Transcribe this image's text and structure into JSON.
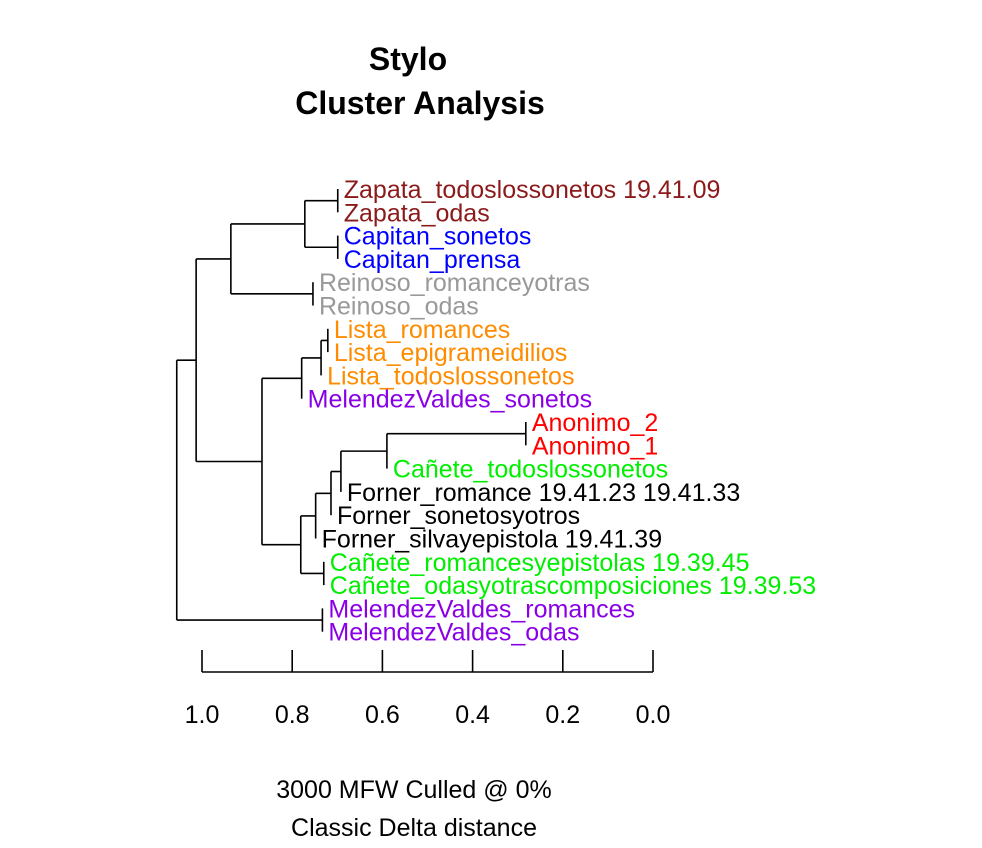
{
  "chart_data": {
    "type": "dendrogram",
    "title": "Stylo",
    "subtitle": "Cluster Analysis",
    "xlabel_line1": "3000 MFW  Culled @ 0%",
    "xlabel_line2": "Classic Delta distance",
    "xlim": [
      1.0,
      0.0
    ],
    "ticks": [
      "1.0",
      "0.8",
      "0.6",
      "0.4",
      "0.2",
      "0.0"
    ],
    "tick_values": [
      1.0,
      0.8,
      0.6,
      0.4,
      0.2,
      0.0
    ],
    "leaves": [
      {
        "label": "Zapata_todoslossonetos 19.41.09",
        "color": "#8B1A1A"
      },
      {
        "label": "Zapata_odas",
        "color": "#8B1A1A"
      },
      {
        "label": "Capitan_sonetos",
        "color": "#0000FF"
      },
      {
        "label": "Capitan_prensa",
        "color": "#0000FF"
      },
      {
        "label": "Reinoso_romanceyotras",
        "color": "#999999"
      },
      {
        "label": "Reinoso_odas",
        "color": "#999999"
      },
      {
        "label": "Lista_romances",
        "color": "#FF8C00"
      },
      {
        "label": "Lista_epigrameidilios",
        "color": "#FF8C00"
      },
      {
        "label": "Lista_todoslossonetos",
        "color": "#FF8C00"
      },
      {
        "label": "MelendezValdes_sonetos",
        "color": "#8A00E6"
      },
      {
        "label": "Anonimo_2",
        "color": "#FF0000"
      },
      {
        "label": "Anonimo_1",
        "color": "#FF0000"
      },
      {
        "label": "Cañete_todoslossonetos",
        "color": "#00EE00"
      },
      {
        "label": "Forner_romance 19.41.23 19.41.33",
        "color": "#000000"
      },
      {
        "label": "Forner_sonetosyotros",
        "color": "#000000"
      },
      {
        "label": "Forner_silvayepistola 19.41.39",
        "color": "#000000"
      },
      {
        "label": "Cañete_romancesyepistolas 19.39.45",
        "color": "#00EE00"
      },
      {
        "label": "Cañete_odasyotrascomposiciones 19.39.53",
        "color": "#00EE00"
      },
      {
        "label": "MelendezValdes_romances",
        "color": "#8A00E6"
      },
      {
        "label": "MelendezValdes_odas",
        "color": "#8A00E6"
      }
    ],
    "merges": [
      {
        "a": "L0",
        "b": "L1",
        "h": 0.699
      },
      {
        "a": "L2",
        "b": "L3",
        "h": 0.699
      },
      {
        "a": "M0",
        "b": "M1",
        "h": 0.772
      },
      {
        "a": "L4",
        "b": "L5",
        "h": 0.754
      },
      {
        "a": "M2",
        "b": "M3",
        "h": 0.936
      },
      {
        "a": "L6",
        "b": "L7",
        "h": 0.721
      },
      {
        "a": "M5",
        "b": "L8",
        "h": 0.736
      },
      {
        "a": "M6",
        "b": "L9",
        "h": 0.779
      },
      {
        "a": "L10",
        "b": "L11",
        "h": 0.282
      },
      {
        "a": "M8",
        "b": "L12",
        "h": 0.59
      },
      {
        "a": "M9",
        "b": "L13",
        "h": 0.692
      },
      {
        "a": "M10",
        "b": "L14",
        "h": 0.714
      },
      {
        "a": "M11",
        "b": "L15",
        "h": 0.748
      },
      {
        "a": "L16",
        "b": "L17",
        "h": 0.73
      },
      {
        "a": "M12",
        "b": "M13",
        "h": 0.781
      },
      {
        "a": "M7",
        "b": "M14",
        "h": 0.867
      },
      {
        "a": "M4",
        "b": "M15",
        "h": 1.013
      },
      {
        "a": "L18",
        "b": "L19",
        "h": 0.733
      },
      {
        "a": "M16",
        "b": "M17",
        "h": 1.056
      }
    ]
  }
}
